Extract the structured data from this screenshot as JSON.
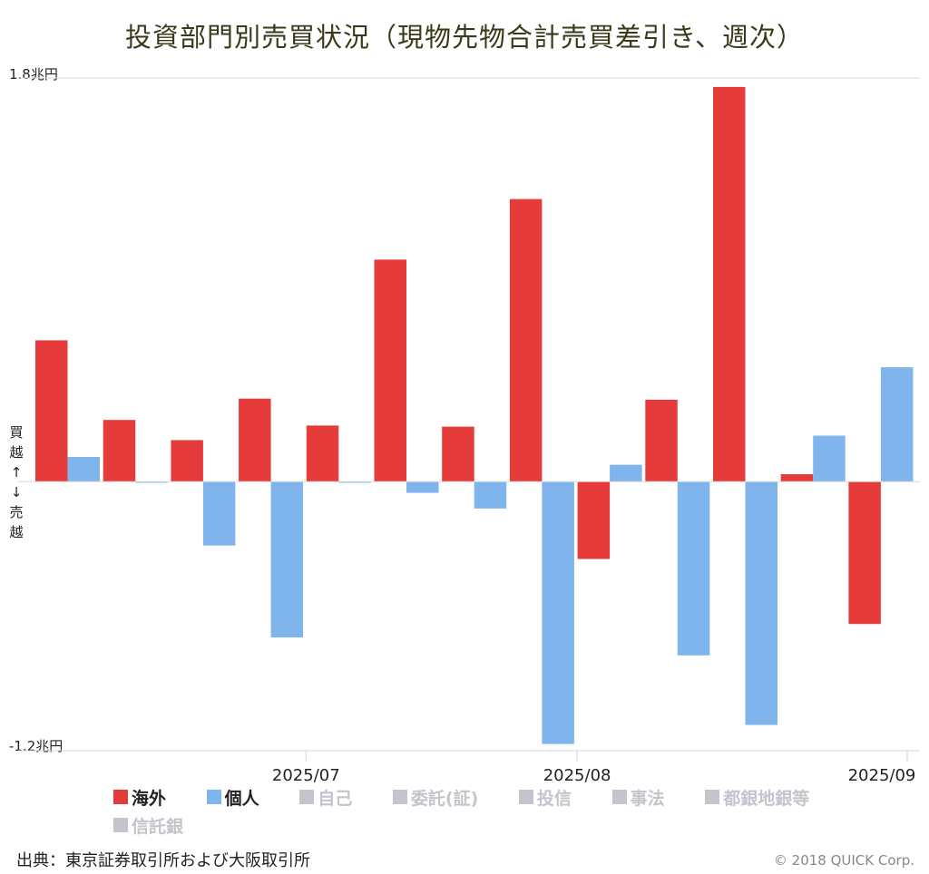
{
  "title": "投資部門別売買状況（現物先物合計売買差引き、週次）",
  "y_axis": {
    "max_label": "1.8兆円",
    "min_label": "-1.2兆円"
  },
  "side_note": [
    "買",
    "越",
    "↑",
    "↓",
    "売",
    "越"
  ],
  "legend": [
    {
      "label": "海外",
      "color": "#e63b3b",
      "active": true
    },
    {
      "label": "個人",
      "color": "#7fb5ec",
      "active": true
    },
    {
      "label": "自己",
      "color": "#c4c4cc",
      "active": false
    },
    {
      "label": "委託(証)",
      "color": "#c4c4cc",
      "active": false
    },
    {
      "label": "投信",
      "color": "#c4c4cc",
      "active": false
    },
    {
      "label": "事法",
      "color": "#c4c4cc",
      "active": false
    },
    {
      "label": "都銀地銀等",
      "color": "#c4c4cc",
      "active": false
    },
    {
      "label": "信託銀",
      "color": "#c4c4cc",
      "active": false
    }
  ],
  "source": "出典：東京証券取引所および大阪取引所",
  "copyright": "© 2018 QUICK Corp.",
  "chart_data": {
    "type": "bar",
    "unit": "兆円",
    "ylim": [
      -1.2,
      1.8
    ],
    "x_tick_labels": [
      {
        "label": "2025/07",
        "after_index": 3
      },
      {
        "label": "2025/08",
        "after_index": 7
      },
      {
        "label": "2025/09",
        "after_index": 12
      }
    ],
    "series": [
      {
        "name": "海外",
        "color": "#e63b3b",
        "values": [
          0.63,
          0.275,
          0.185,
          0.37,
          0.25,
          0.99,
          0.245,
          1.26,
          -0.345,
          0.365,
          1.76,
          0.033,
          -0.635
        ]
      },
      {
        "name": "個人",
        "color": "#7fb5ec",
        "values": [
          0.11,
          -0.005,
          -0.285,
          -0.695,
          -0.005,
          -0.05,
          -0.12,
          -1.17,
          0.075,
          -0.775,
          -1.085,
          0.205,
          0.51
        ]
      }
    ]
  }
}
